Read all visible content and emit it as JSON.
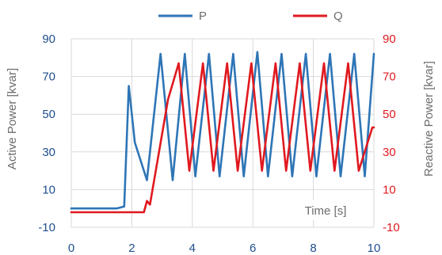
{
  "chart_data": {
    "type": "line",
    "xlabel": "Time [s]",
    "ylabel_left": "Active Power [kvar]",
    "ylabel_right": "Reactive Power [kvar]",
    "xlim": [
      0,
      10
    ],
    "ylim_left": [
      -10,
      90
    ],
    "ylim_right": [
      -10,
      90
    ],
    "x_ticks": [
      "0",
      "2",
      "4",
      "6",
      "8",
      "10"
    ],
    "y_ticks_left": [
      "-10",
      "10",
      "30",
      "50",
      "70",
      "90"
    ],
    "y_ticks_right": [
      "-10",
      "10",
      "30",
      "50",
      "70",
      "90"
    ],
    "grid": true,
    "legend_position": "top",
    "series": [
      {
        "name": "P",
        "color": "#2e75b6",
        "x": [
          0,
          1.5,
          1.75,
          1.9,
          2.1,
          2.5,
          2.95,
          3.35,
          3.75,
          4.1,
          4.55,
          4.9,
          5.35,
          5.7,
          6.15,
          6.5,
          6.95,
          7.3,
          7.75,
          8.1,
          8.55,
          8.9,
          9.35,
          9.7,
          10.0
        ],
        "y": [
          0,
          0,
          1,
          65,
          35,
          15,
          82,
          15,
          82,
          17,
          82,
          17,
          82,
          17,
          83,
          17,
          82,
          17,
          82,
          17,
          82,
          17,
          82,
          17,
          82
        ]
      },
      {
        "name": "Q",
        "color": "#e0191f",
        "x": [
          0,
          2.4,
          2.5,
          2.6,
          3.2,
          3.55,
          3.9,
          4.35,
          4.7,
          5.15,
          5.5,
          5.95,
          6.3,
          6.75,
          7.1,
          7.55,
          7.9,
          8.35,
          8.7,
          9.15,
          9.5,
          9.95,
          10.0
        ],
        "y": [
          -2,
          -2,
          4,
          2,
          58,
          77,
          20,
          77,
          20,
          77,
          20,
          77,
          20,
          77,
          20,
          77,
          20,
          77,
          20,
          77,
          20,
          43,
          43
        ]
      }
    ]
  }
}
